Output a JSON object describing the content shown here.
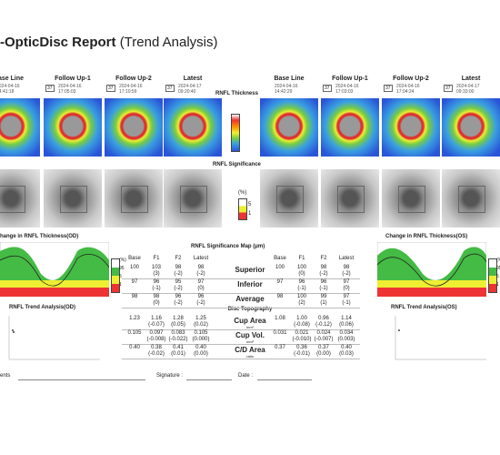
{
  "header": {
    "title": "-OpticDisc Report",
    "subtitle": "(Trend Analysis)"
  },
  "exams": {
    "od": [
      {
        "label": "ase Line",
        "date": "2024-04-16",
        "time": "14:41:18"
      },
      {
        "label": "Follow Up-1",
        "id": "37",
        "date": "2024-04-16",
        "time": "17:05:03"
      },
      {
        "label": "Follow Up-2",
        "id": "37",
        "date": "2024-04-16",
        "time": "17:10:59"
      },
      {
        "label": "Latest",
        "id": "37",
        "date": "2024-04-17",
        "time": "09:20:40"
      }
    ],
    "os": [
      {
        "label": "Base Line",
        "date": "2024-04-16",
        "time": "14:42:29"
      },
      {
        "label": "Follow Up-1",
        "id": "37",
        "date": "2024-04-16",
        "time": "17:03:03"
      },
      {
        "label": "Follow Up-2",
        "id": "37",
        "date": "2024-04-16",
        "time": "17:04:24"
      },
      {
        "label": "Latest",
        "id": "37",
        "date": "2024-04-17",
        "time": "09:33:00"
      }
    ]
  },
  "sections": {
    "thickness": "RNFL Thickness",
    "significance": "RNFL Significance",
    "significance_legend": [
      "(%)",
      "5",
      "1"
    ],
    "change_od": "hange in RNFL Thickness(OD)",
    "change_os": "Change in RNFL Thickness(OS)",
    "change_legend": [
      "(%)",
      "95",
      "5",
      "1"
    ],
    "trend_od": "RNFL Trend Analysis(OD)",
    "trend_os": "RNFL Trend Analysis(OS)"
  },
  "table": {
    "title": "RNFL Significance Map (μm)",
    "columns": [
      "Base",
      "F1",
      "F2",
      "Latest"
    ],
    "topography": "Disc Topography",
    "rows": [
      {
        "label": "Superior",
        "od": [
          "100",
          "103",
          "98",
          "98"
        ],
        "od_change": [
          "(3)",
          "(-2)",
          "(-2)"
        ],
        "os": [
          "100",
          "100",
          "98",
          "98"
        ],
        "os_change": [
          "(0)",
          "(-2)",
          "(-2)"
        ]
      },
      {
        "label": "Inferior",
        "od": [
          "97",
          "96",
          "95",
          "97"
        ],
        "od_change": [
          "(-1)",
          "(-2)",
          "(0)"
        ],
        "os": [
          "97",
          "96",
          "96",
          "97"
        ],
        "os_change": [
          "(-1)",
          "(-1)",
          "(0)"
        ]
      },
      {
        "label": "Average",
        "od": [
          "98",
          "98",
          "96",
          "96"
        ],
        "od_change": [
          "(0)",
          "(-2)",
          "(-2)"
        ],
        "os": [
          "98",
          "100",
          "99",
          "97"
        ],
        "os_change": [
          "(2)",
          "(1)",
          "(-1)"
        ]
      },
      {
        "label": "Cup Area",
        "unit": "mm²",
        "od": [
          "1.23",
          "1.16",
          "1.28",
          "1.25"
        ],
        "od_change": [
          "(-0.07)",
          "(0.05)",
          "(0.02)"
        ],
        "os": [
          "1.08",
          "1.00",
          "0.96",
          "1.14"
        ],
        "os_change": [
          "(-0.08)",
          "(-0.12)",
          "(0.06)"
        ]
      },
      {
        "label": "Cup Vol.",
        "unit": "mm³",
        "od": [
          "0.105",
          "0.097",
          "0.083",
          "0.105"
        ],
        "od_change": [
          "(-0.008)",
          "(-0.022)",
          "(0.000)"
        ],
        "os": [
          "0.031",
          "0.021",
          "0.024",
          "0.034"
        ],
        "os_change": [
          "(-0.010)",
          "(-0.007)",
          "(0.003)"
        ]
      },
      {
        "label": "C/D Area",
        "unit": "ratio",
        "od": [
          "0.40",
          "0.38",
          "0.41",
          "0.40"
        ],
        "od_change": [
          "(-0.02)",
          "(0.01)",
          "(0.00)"
        ],
        "os": [
          "0.37",
          "0.36",
          "0.37",
          "0.40"
        ],
        "os_change": [
          "(-0.01)",
          "(0.00)",
          "(0.03)"
        ]
      }
    ]
  },
  "footer": {
    "comments": "ents",
    "signature": "Signature :",
    "date": "Date :"
  }
}
